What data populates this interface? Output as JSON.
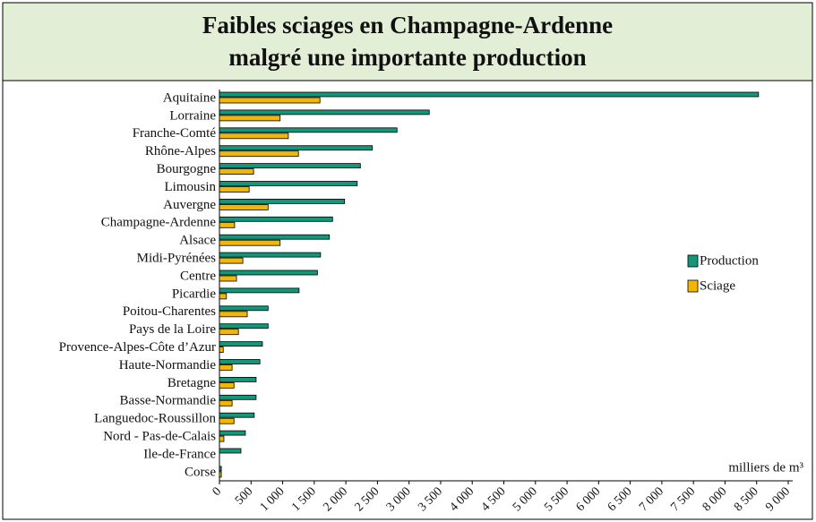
{
  "chart_data": {
    "type": "bar",
    "orientation": "horizontal",
    "title": [
      "Faibles sciages en Champagne-Ardenne",
      "malgré une importante production"
    ],
    "xlabel": "milliers de m³",
    "categories": [
      "Aquitaine",
      "Lorraine",
      "Franche-Comté",
      "Rhône-Alpes",
      "Bourgogne",
      "Limousin",
      "Auvergne",
      "Champagne-Ardenne",
      "Alsace",
      "Midi-Pyrénées",
      "Centre",
      "Picardie",
      "Poitou-Charentes",
      "Pays de la Loire",
      "Provence-Alpes-Côte d’Azur",
      "Haute-Normandie",
      "Bretagne",
      "Basse-Normandie",
      "Languedoc-Roussillon",
      "Nord - Pas-de-Calais",
      "Ile-de-France",
      "Corse"
    ],
    "series": [
      {
        "name": "Production",
        "color": "#12977a",
        "values": [
          8530,
          3320,
          2810,
          2420,
          2230,
          2180,
          1980,
          1790,
          1740,
          1600,
          1550,
          1260,
          770,
          770,
          680,
          640,
          580,
          580,
          550,
          410,
          340,
          30
        ]
      },
      {
        "name": "Sciage",
        "color": "#f2b705",
        "values": [
          1590,
          960,
          1090,
          1250,
          540,
          470,
          770,
          240,
          960,
          370,
          270,
          110,
          440,
          300,
          60,
          200,
          230,
          200,
          230,
          70,
          0,
          30
        ]
      }
    ],
    "xlim": [
      0,
      9000
    ],
    "xticks": [
      0,
      500,
      {
        "value": 1000,
        "label": "1 000"
      },
      {
        "value": 1500,
        "label": "1 500"
      },
      {
        "value": 2000,
        "label": "2 000"
      },
      {
        "value": 2500,
        "label": "2 500"
      },
      {
        "value": 3000,
        "label": "3 000"
      },
      {
        "value": 3500,
        "label": "3 500"
      },
      {
        "value": 4000,
        "label": "4 000"
      },
      {
        "value": 4500,
        "label": "4 500"
      },
      {
        "value": 5000,
        "label": "5 000"
      },
      {
        "value": 5500,
        "label": "5 500"
      },
      {
        "value": 6000,
        "label": "6 000"
      },
      {
        "value": 6500,
        "label": "6 500"
      },
      {
        "value": 7000,
        "label": "7 000"
      },
      {
        "value": 7500,
        "label": "7 500"
      },
      {
        "value": 8000,
        "label": "8 000"
      },
      {
        "value": 8500,
        "label": "8 500"
      },
      {
        "value": 9000,
        "label": "9 000"
      }
    ],
    "legend": "right"
  }
}
